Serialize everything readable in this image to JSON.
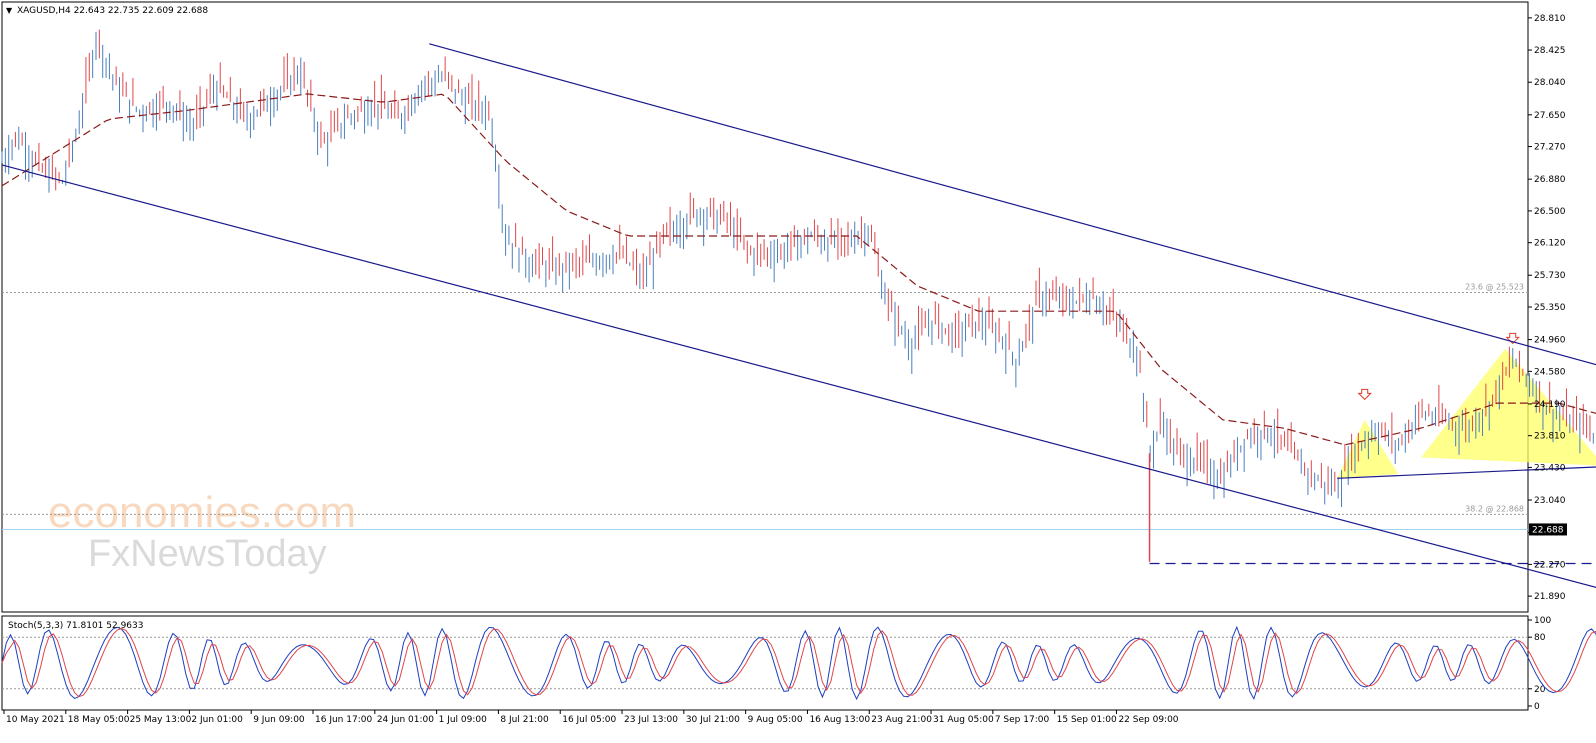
{
  "window": {
    "title_arrow": "▼",
    "title": "XAGUSD,H4 22.643 22.735 22.609 22.688"
  },
  "watermark": {
    "brand": "economies.com",
    "sub": "FxNewsToday"
  },
  "chart_data": {
    "type": "candlestick",
    "symbol": "XAGUSD",
    "timeframe": "H4",
    "ohlc_header": {
      "open": 22.643,
      "high": 22.735,
      "low": 22.609,
      "close": 22.688
    },
    "last_price": 22.688,
    "ylim": [
      21.7,
      29.0
    ],
    "y_ticks": [
      "28.810",
      "28.425",
      "28.040",
      "27.650",
      "27.270",
      "26.880",
      "26.500",
      "26.120",
      "25.730",
      "25.350",
      "24.960",
      "24.580",
      "24.190",
      "23.810",
      "23.430",
      "23.040",
      "22.650",
      "22.270",
      "21.890"
    ],
    "x_ticks": [
      "10 May 2021",
      "18 May 05:00",
      "25 May 13:00",
      "2 Jun 01:00",
      "9 Jun 09:00",
      "16 Jun 17:00",
      "24 Jun 01:00",
      "1 Jul 09:00",
      "8 Jul 21:00",
      "16 Jul 05:00",
      "23 Jul 13:00",
      "30 Jul 21:00",
      "9 Aug 05:00",
      "16 Aug 13:00",
      "23 Aug 21:00",
      "31 Aug 05:00",
      "7 Sep 17:00",
      "15 Sep 01:00",
      "22 Sep 09:00"
    ],
    "path": [
      [
        0,
        27.1
      ],
      [
        0.01,
        27.4
      ],
      [
        0.025,
        27.0
      ],
      [
        0.04,
        26.85
      ],
      [
        0.05,
        27.5
      ],
      [
        0.062,
        28.6
      ],
      [
        0.075,
        28.0
      ],
      [
        0.09,
        27.7
      ],
      [
        0.11,
        27.8
      ],
      [
        0.125,
        27.5
      ],
      [
        0.14,
        28.0
      ],
      [
        0.16,
        27.6
      ],
      [
        0.18,
        27.9
      ],
      [
        0.195,
        28.2
      ],
      [
        0.21,
        27.3
      ],
      [
        0.225,
        27.6
      ],
      [
        0.245,
        27.8
      ],
      [
        0.26,
        27.6
      ],
      [
        0.275,
        28.0
      ],
      [
        0.29,
        28.1
      ],
      [
        0.305,
        27.8
      ],
      [
        0.32,
        27.7
      ],
      [
        0.33,
        26.2
      ],
      [
        0.345,
        25.9
      ],
      [
        0.365,
        25.8
      ],
      [
        0.385,
        25.9
      ],
      [
        0.405,
        26.0
      ],
      [
        0.42,
        25.7
      ],
      [
        0.435,
        26.2
      ],
      [
        0.455,
        26.5
      ],
      [
        0.475,
        26.4
      ],
      [
        0.49,
        26.0
      ],
      [
        0.51,
        26.0
      ],
      [
        0.53,
        26.2
      ],
      [
        0.55,
        26.1
      ],
      [
        0.568,
        26.3
      ],
      [
        0.58,
        25.4
      ],
      [
        0.595,
        24.9
      ],
      [
        0.61,
        25.2
      ],
      [
        0.625,
        25.0
      ],
      [
        0.64,
        25.2
      ],
      [
        0.655,
        25.0
      ],
      [
        0.665,
        24.7
      ],
      [
        0.68,
        25.5
      ],
      [
        0.7,
        25.4
      ],
      [
        0.715,
        25.5
      ],
      [
        0.73,
        25.2
      ],
      [
        0.745,
        24.8
      ],
      [
        0.752,
        23.6
      ],
      [
        0.76,
        24.0
      ],
      [
        0.77,
        23.6
      ],
      [
        0.785,
        23.5
      ],
      [
        0.8,
        23.3
      ],
      [
        0.815,
        23.8
      ],
      [
        0.83,
        23.9
      ],
      [
        0.845,
        23.6
      ],
      [
        0.86,
        23.3
      ],
      [
        0.875,
        23.2
      ],
      [
        0.885,
        23.6
      ],
      [
        0.9,
        23.9
      ],
      [
        0.915,
        23.7
      ],
      [
        0.93,
        24.1
      ],
      [
        0.945,
        24.0
      ],
      [
        0.96,
        23.9
      ],
      [
        0.975,
        24.2
      ],
      [
        0.99,
        24.7
      ],
      [
        1.0,
        24.5
      ],
      [
        1.01,
        24.2
      ],
      [
        1.025,
        24.0
      ],
      [
        1.04,
        23.9
      ],
      [
        1.055,
        23.6
      ],
      [
        1.07,
        23.9
      ],
      [
        1.082,
        23.6
      ],
      [
        1.09,
        22.8
      ],
      [
        1.1,
        22.6
      ],
      [
        1.11,
        22.4
      ],
      [
        1.12,
        22.6
      ],
      [
        1.13,
        22.5
      ],
      [
        1.14,
        22.8
      ],
      [
        1.15,
        22.6
      ],
      [
        1.16,
        22.4
      ],
      [
        1.168,
        22.69
      ]
    ],
    "series": [
      {
        "type": "moving-average",
        "path": [
          [
            0,
            26.8
          ],
          [
            0.07,
            27.6
          ],
          [
            0.12,
            27.7
          ],
          [
            0.2,
            27.9
          ],
          [
            0.25,
            27.8
          ],
          [
            0.29,
            27.9
          ],
          [
            0.33,
            27.1
          ],
          [
            0.37,
            26.5
          ],
          [
            0.41,
            26.2
          ],
          [
            0.45,
            26.2
          ],
          [
            0.5,
            26.2
          ],
          [
            0.56,
            26.2
          ],
          [
            0.6,
            25.6
          ],
          [
            0.64,
            25.3
          ],
          [
            0.68,
            25.3
          ],
          [
            0.73,
            25.3
          ],
          [
            0.76,
            24.6
          ],
          [
            0.8,
            24.0
          ],
          [
            0.84,
            23.9
          ],
          [
            0.88,
            23.7
          ],
          [
            0.93,
            23.9
          ],
          [
            0.98,
            24.2
          ],
          [
            1.02,
            24.2
          ],
          [
            1.06,
            24.0
          ],
          [
            1.09,
            23.6
          ],
          [
            1.12,
            23.2
          ],
          [
            1.16,
            22.9
          ]
        ]
      }
    ],
    "channel": {
      "upper": [
        [
          0.28,
          28.5
        ],
        [
          1.385,
          22.95
        ]
      ],
      "lower": [
        [
          0.0,
          27.05
        ],
        [
          1.06,
          21.92
        ]
      ]
    },
    "neckline": [
      [
        0.875,
        23.3
      ],
      [
        1.125,
        23.5
      ]
    ],
    "support_dashed": {
      "x": [
        0.752,
        1.165
      ],
      "y": 22.28
    },
    "rectangle": {
      "x": [
        1.068,
        1.21
      ],
      "y": [
        22.2,
        23.0
      ]
    },
    "pattern_markers": [
      "head-and-shoulders"
    ],
    "fib_levels": [
      {
        "label": "23.6 @ 25.523",
        "value": 25.523
      },
      {
        "label": "38.2 @ 22.868",
        "value": 22.868
      }
    ],
    "stochastic": {
      "label": "Stoch(5,3,3) 71.8101 52.9633",
      "k": 71.8101,
      "d": 52.9633,
      "levels": [
        80,
        20
      ],
      "y_ticks": [
        "100",
        "80",
        "20",
        "0"
      ]
    }
  }
}
